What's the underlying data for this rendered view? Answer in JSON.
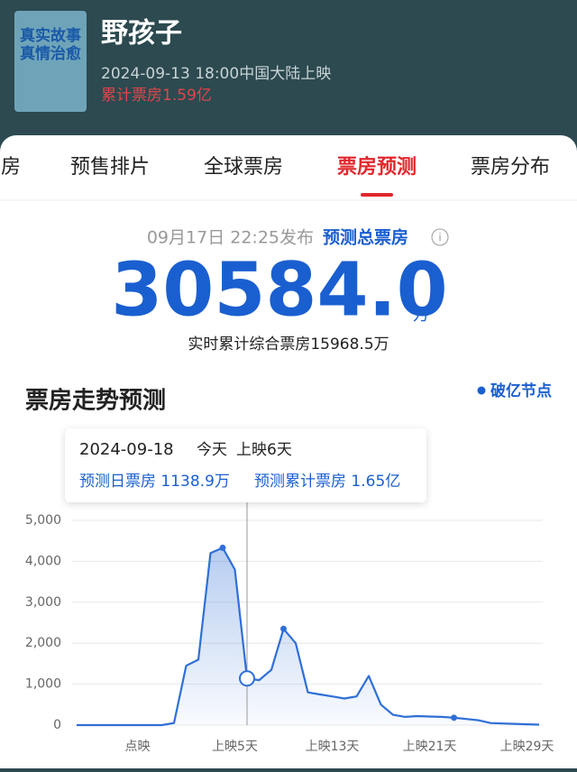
{
  "header": {
    "poster_text": [
      "真实故事",
      "真情治愈"
    ],
    "title": "野孩子",
    "release": "2024-09-13 18:00中国大陆上映",
    "total_box": "累计票房1.59亿"
  },
  "tabs": {
    "items": [
      "房",
      "预售排片",
      "全球票房",
      "票房预测",
      "票房分布"
    ],
    "active": 3
  },
  "forecast": {
    "published": "09月17日 22:25发布",
    "label": "预测总票房",
    "value": "30584.0",
    "unit": "万",
    "realtime": "实时累计综合票房15968.5万"
  },
  "chart_data": {
    "type": "line",
    "title": "票房走势预测",
    "legend": "破亿节点",
    "tooltip": {
      "date": "2024-09-18",
      "today": "今天",
      "days": "上映6天",
      "daily": "预测日票房 1138.9万",
      "cumulative": "预测累计票房 1.65亿"
    },
    "categories": [
      null,
      null,
      null,
      null,
      null,
      "点映",
      null,
      null,
      null,
      null,
      null,
      null,
      null,
      "上映5天",
      null,
      null,
      null,
      null,
      null,
      null,
      null,
      "上映13天",
      null,
      null,
      null,
      null,
      null,
      null,
      null,
      "上映21天",
      null,
      null,
      null,
      null,
      null,
      null,
      null,
      "上映29天",
      null
    ],
    "series": [
      {
        "name": "预测日票房",
        "color": "#2f6fd6",
        "values": [
          0,
          0,
          0,
          0,
          0,
          0,
          0,
          0,
          50,
          1450,
          1600,
          4200,
          4330,
          3800,
          1138.9,
          1100,
          1350,
          2350,
          2000,
          800,
          750,
          700,
          650,
          700,
          1200,
          500,
          250,
          200,
          220,
          210,
          200,
          180,
          150,
          120,
          50,
          40,
          30,
          20,
          10
        ]
      }
    ],
    "milestone_indices": [
      12,
      17,
      31
    ],
    "highlight_index": 14,
    "ylim": [
      0,
      5000
    ],
    "yticks": [
      0,
      {
        "value": 1000,
        "label": "1,000"
      },
      {
        "value": 2000,
        "label": "2,000"
      },
      {
        "value": 3000,
        "label": "3,000"
      },
      {
        "value": 4000,
        "label": "4,000"
      },
      {
        "value": 5000,
        "label": "5,000"
      }
    ],
    "grid": true
  }
}
